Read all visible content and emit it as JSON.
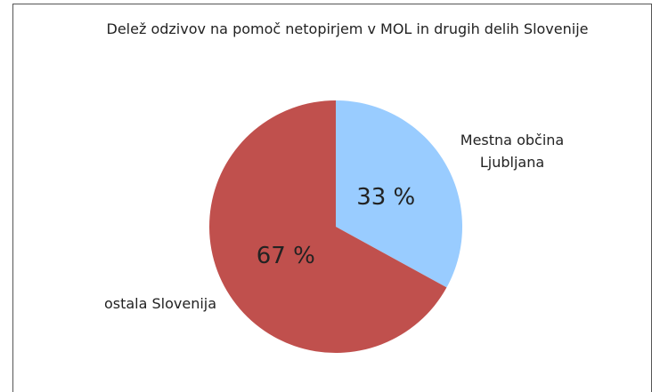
{
  "chart_data": {
    "type": "pie",
    "title": "Delež odzivov na pomoč netopirjem v MOL in drugih delih Slovenije",
    "categories": [
      "Mestna občina Ljubljana",
      "ostala Slovenija"
    ],
    "values": [
      33,
      67
    ],
    "value_labels": [
      "33 %",
      "67 %"
    ],
    "colors": [
      "#99ccff",
      "#c0504d"
    ]
  }
}
